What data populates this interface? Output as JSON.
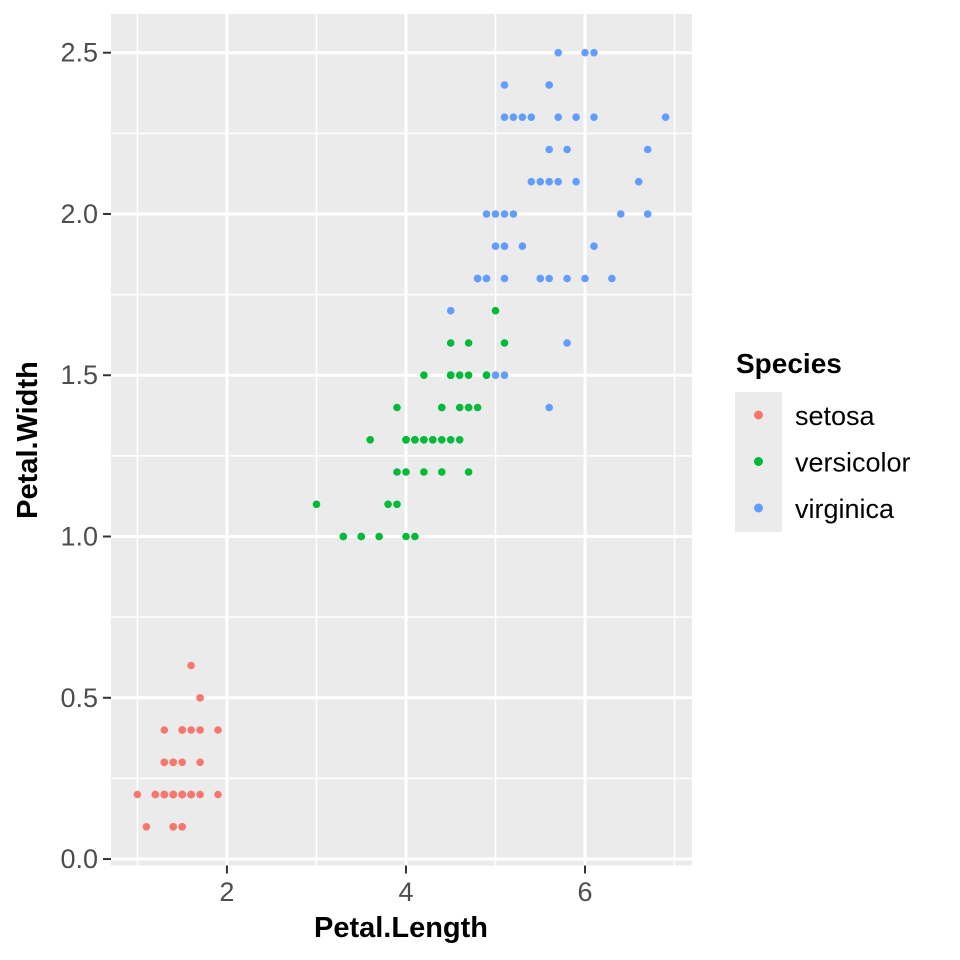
{
  "figure": {
    "background": "#FFFFFF",
    "panel_background": "#EBEBEB",
    "gridline_color": "#FFFFFF",
    "tick_mark_color": "#333333",
    "tick_label_color": "#4D4D4D"
  },
  "chart_data": {
    "type": "scatter",
    "title": "",
    "xlabel": "Petal.Length",
    "ylabel": "Petal.Width",
    "xlim": [
      0.705,
      7.195
    ],
    "ylim": [
      -0.02,
      2.62
    ],
    "x_ticks": [
      2,
      4,
      6
    ],
    "x_tick_labels": [
      "2",
      "4",
      "6"
    ],
    "y_ticks": [
      0.0,
      0.5,
      1.0,
      1.5,
      2.0,
      2.5
    ],
    "y_tick_labels": [
      "0.0",
      "0.5",
      "1.0",
      "1.5",
      "2.0",
      "2.5"
    ],
    "grid": true,
    "legend": {
      "title": "Species",
      "position": "right"
    },
    "series": [
      {
        "name": "setosa",
        "color": "#F8766D",
        "points": [
          [
            1.4,
            0.2
          ],
          [
            1.4,
            0.2
          ],
          [
            1.3,
            0.2
          ],
          [
            1.5,
            0.2
          ],
          [
            1.4,
            0.2
          ],
          [
            1.7,
            0.4
          ],
          [
            1.4,
            0.3
          ],
          [
            1.5,
            0.2
          ],
          [
            1.4,
            0.2
          ],
          [
            1.5,
            0.1
          ],
          [
            1.5,
            0.2
          ],
          [
            1.6,
            0.2
          ],
          [
            1.4,
            0.1
          ],
          [
            1.1,
            0.1
          ],
          [
            1.2,
            0.2
          ],
          [
            1.5,
            0.4
          ],
          [
            1.3,
            0.4
          ],
          [
            1.4,
            0.3
          ],
          [
            1.7,
            0.3
          ],
          [
            1.5,
            0.3
          ],
          [
            1.7,
            0.2
          ],
          [
            1.5,
            0.4
          ],
          [
            1.0,
            0.2
          ],
          [
            1.7,
            0.5
          ],
          [
            1.9,
            0.2
          ],
          [
            1.6,
            0.2
          ],
          [
            1.6,
            0.4
          ],
          [
            1.5,
            0.2
          ],
          [
            1.4,
            0.2
          ],
          [
            1.6,
            0.2
          ],
          [
            1.6,
            0.2
          ],
          [
            1.5,
            0.4
          ],
          [
            1.5,
            0.1
          ],
          [
            1.4,
            0.2
          ],
          [
            1.5,
            0.2
          ],
          [
            1.2,
            0.2
          ],
          [
            1.3,
            0.2
          ],
          [
            1.4,
            0.1
          ],
          [
            1.3,
            0.2
          ],
          [
            1.5,
            0.2
          ],
          [
            1.3,
            0.3
          ],
          [
            1.3,
            0.3
          ],
          [
            1.3,
            0.2
          ],
          [
            1.6,
            0.6
          ],
          [
            1.9,
            0.4
          ],
          [
            1.4,
            0.3
          ],
          [
            1.6,
            0.2
          ],
          [
            1.4,
            0.2
          ],
          [
            1.5,
            0.2
          ],
          [
            1.4,
            0.2
          ]
        ]
      },
      {
        "name": "versicolor",
        "color": "#00BA38",
        "points": [
          [
            4.7,
            1.4
          ],
          [
            4.5,
            1.5
          ],
          [
            4.9,
            1.5
          ],
          [
            4.0,
            1.3
          ],
          [
            4.6,
            1.5
          ],
          [
            4.5,
            1.3
          ],
          [
            4.7,
            1.6
          ],
          [
            3.3,
            1.0
          ],
          [
            4.6,
            1.3
          ],
          [
            3.9,
            1.4
          ],
          [
            3.5,
            1.0
          ],
          [
            4.2,
            1.5
          ],
          [
            4.0,
            1.0
          ],
          [
            4.7,
            1.4
          ],
          [
            3.6,
            1.3
          ],
          [
            4.4,
            1.4
          ],
          [
            4.5,
            1.5
          ],
          [
            4.1,
            1.0
          ],
          [
            4.5,
            1.5
          ],
          [
            3.9,
            1.1
          ],
          [
            4.8,
            1.8
          ],
          [
            4.0,
            1.3
          ],
          [
            4.9,
            1.5
          ],
          [
            4.7,
            1.2
          ],
          [
            4.3,
            1.3
          ],
          [
            4.4,
            1.4
          ],
          [
            4.8,
            1.4
          ],
          [
            5.0,
            1.7
          ],
          [
            4.5,
            1.5
          ],
          [
            3.5,
            1.0
          ],
          [
            3.8,
            1.1
          ],
          [
            3.7,
            1.0
          ],
          [
            3.9,
            1.2
          ],
          [
            5.1,
            1.6
          ],
          [
            4.5,
            1.5
          ],
          [
            4.5,
            1.6
          ],
          [
            4.7,
            1.5
          ],
          [
            4.4,
            1.3
          ],
          [
            4.1,
            1.3
          ],
          [
            4.0,
            1.3
          ],
          [
            4.4,
            1.2
          ],
          [
            4.6,
            1.4
          ],
          [
            4.0,
            1.2
          ],
          [
            3.3,
            1.0
          ],
          [
            4.2,
            1.3
          ],
          [
            4.2,
            1.2
          ],
          [
            4.2,
            1.3
          ],
          [
            4.3,
            1.3
          ],
          [
            3.0,
            1.1
          ],
          [
            4.1,
            1.3
          ]
        ]
      },
      {
        "name": "virginica",
        "color": "#619CFF",
        "points": [
          [
            6.0,
            2.5
          ],
          [
            5.1,
            1.9
          ],
          [
            5.9,
            2.1
          ],
          [
            5.6,
            1.8
          ],
          [
            5.8,
            2.2
          ],
          [
            6.6,
            2.1
          ],
          [
            4.5,
            1.7
          ],
          [
            6.3,
            1.8
          ],
          [
            5.8,
            1.8
          ],
          [
            6.1,
            2.5
          ],
          [
            5.1,
            2.0
          ],
          [
            5.3,
            1.9
          ],
          [
            5.5,
            2.1
          ],
          [
            5.0,
            2.0
          ],
          [
            5.1,
            2.4
          ],
          [
            5.3,
            2.3
          ],
          [
            5.5,
            1.8
          ],
          [
            6.7,
            2.2
          ],
          [
            6.9,
            2.3
          ],
          [
            5.0,
            1.5
          ],
          [
            5.7,
            2.3
          ],
          [
            4.9,
            2.0
          ],
          [
            6.7,
            2.0
          ],
          [
            4.9,
            1.8
          ],
          [
            5.7,
            2.1
          ],
          [
            6.0,
            1.8
          ],
          [
            4.8,
            1.8
          ],
          [
            4.9,
            1.8
          ],
          [
            5.6,
            2.1
          ],
          [
            5.8,
            1.6
          ],
          [
            6.1,
            1.9
          ],
          [
            6.4,
            2.0
          ],
          [
            5.6,
            2.2
          ],
          [
            5.1,
            1.5
          ],
          [
            5.6,
            1.4
          ],
          [
            6.1,
            2.3
          ],
          [
            5.6,
            2.4
          ],
          [
            5.5,
            1.8
          ],
          [
            4.8,
            1.8
          ],
          [
            5.4,
            2.1
          ],
          [
            5.6,
            2.4
          ],
          [
            5.1,
            2.3
          ],
          [
            5.1,
            1.9
          ],
          [
            5.9,
            2.3
          ],
          [
            5.7,
            2.5
          ],
          [
            5.2,
            2.3
          ],
          [
            5.0,
            1.9
          ],
          [
            5.2,
            2.0
          ],
          [
            5.4,
            2.3
          ],
          [
            5.1,
            1.8
          ]
        ]
      }
    ]
  }
}
